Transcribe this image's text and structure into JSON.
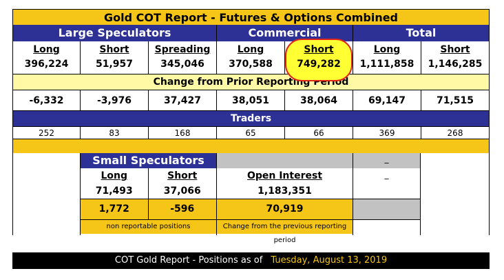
{
  "title": "Gold COT Report - Futures & Options Combined",
  "groups": {
    "large": "Large Speculators",
    "commercial": "Commercial",
    "total": "Total"
  },
  "columns": [
    "Long",
    "Short",
    "Spreading",
    "Long",
    "Short",
    "Long",
    "Short"
  ],
  "positions": [
    "396,224",
    "51,957",
    "345,046",
    "370,588",
    "749,282",
    "1,111,858",
    "1,146,285"
  ],
  "change_title": "Change from Prior Reporting Period",
  "changes": [
    "-6,332",
    "-3,976",
    "37,427",
    "38,051",
    "38,064",
    "69,147",
    "71,515"
  ],
  "traders_title": "Traders",
  "traders": [
    "252",
    "83",
    "168",
    "65",
    "66",
    "369",
    "268"
  ],
  "small": {
    "title": "Small Speculators",
    "long_label": "Long",
    "short_label": "Short",
    "long": "71,493",
    "short": "37,066",
    "long_change": "1,772",
    "short_change": "-596",
    "note": "non reportable positions"
  },
  "open_interest": {
    "label": "Open Interest",
    "value": "1,183,351",
    "change": "70,919",
    "note": "Change from the previous reporting period"
  },
  "dash1": "_",
  "dash2": "_",
  "footer": {
    "text": "COT Gold Report - Positions as of",
    "date": "Tuesday, August 13, 2019"
  }
}
